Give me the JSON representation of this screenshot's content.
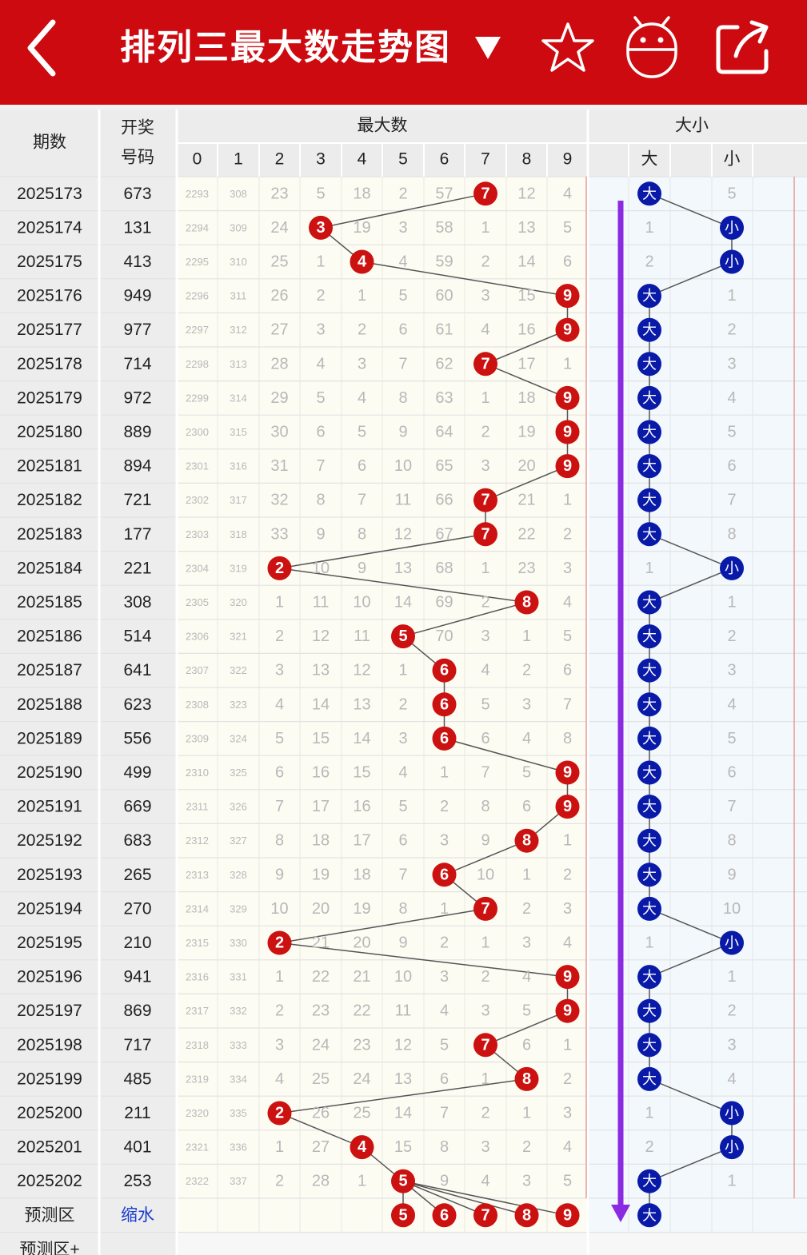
{
  "header": {
    "title": "排列三最大数走势图",
    "icons": [
      "back-arrow-icon",
      "dropdown-triangle-icon",
      "star-icon",
      "android-icon",
      "share-icon"
    ]
  },
  "colors": {
    "brand": "#cc0a10",
    "red_ball": "#cc1111",
    "blue_ball": "#0a1aa8",
    "arrow": "#8a2be2"
  },
  "table": {
    "header_period": "期数",
    "header_draw_line1": "开奖",
    "header_draw_line2": "号码",
    "group_max": "最大数",
    "group_size": "大小",
    "digit_headers": [
      "0",
      "1",
      "2",
      "3",
      "4",
      "5",
      "6",
      "7",
      "8",
      "9"
    ],
    "big_label": "大",
    "small_label": "小",
    "rows": [
      {
        "period": "2025173",
        "draw": "673",
        "cells": [
          "2293",
          "308",
          "23",
          "5",
          "18",
          "2",
          "57",
          "7",
          "12",
          "4"
        ],
        "max": 7,
        "big": "大",
        "small": "5"
      },
      {
        "period": "2025174",
        "draw": "131",
        "cells": [
          "2294",
          "309",
          "24",
          "3",
          "19",
          "3",
          "58",
          "1",
          "13",
          "5"
        ],
        "max": 3,
        "big": "1",
        "small": "小"
      },
      {
        "period": "2025175",
        "draw": "413",
        "cells": [
          "2295",
          "310",
          "25",
          "1",
          "4",
          "4",
          "59",
          "2",
          "14",
          "6"
        ],
        "max": 4,
        "big": "2",
        "small": "小"
      },
      {
        "period": "2025176",
        "draw": "949",
        "cells": [
          "2296",
          "311",
          "26",
          "2",
          "1",
          "5",
          "60",
          "3",
          "15",
          "9"
        ],
        "max": 9,
        "big": "大",
        "small": "1"
      },
      {
        "period": "2025177",
        "draw": "977",
        "cells": [
          "2297",
          "312",
          "27",
          "3",
          "2",
          "6",
          "61",
          "4",
          "16",
          "9"
        ],
        "max": 9,
        "big": "大",
        "small": "2"
      },
      {
        "period": "2025178",
        "draw": "714",
        "cells": [
          "2298",
          "313",
          "28",
          "4",
          "3",
          "7",
          "62",
          "7",
          "17",
          "1"
        ],
        "max": 7,
        "big": "大",
        "small": "3"
      },
      {
        "period": "2025179",
        "draw": "972",
        "cells": [
          "2299",
          "314",
          "29",
          "5",
          "4",
          "8",
          "63",
          "1",
          "18",
          "9"
        ],
        "max": 9,
        "big": "大",
        "small": "4"
      },
      {
        "period": "2025180",
        "draw": "889",
        "cells": [
          "2300",
          "315",
          "30",
          "6",
          "5",
          "9",
          "64",
          "2",
          "19",
          "9"
        ],
        "max": 9,
        "big": "大",
        "small": "5"
      },
      {
        "period": "2025181",
        "draw": "894",
        "cells": [
          "2301",
          "316",
          "31",
          "7",
          "6",
          "10",
          "65",
          "3",
          "20",
          "9"
        ],
        "max": 9,
        "big": "大",
        "small": "6"
      },
      {
        "period": "2025182",
        "draw": "721",
        "cells": [
          "2302",
          "317",
          "32",
          "8",
          "7",
          "11",
          "66",
          "7",
          "21",
          "1"
        ],
        "max": 7,
        "big": "大",
        "small": "7"
      },
      {
        "period": "2025183",
        "draw": "177",
        "cells": [
          "2303",
          "318",
          "33",
          "9",
          "8",
          "12",
          "67",
          "7",
          "22",
          "2"
        ],
        "max": 7,
        "big": "大",
        "small": "8"
      },
      {
        "period": "2025184",
        "draw": "221",
        "cells": [
          "2304",
          "319",
          "2",
          "10",
          "9",
          "13",
          "68",
          "1",
          "23",
          "3"
        ],
        "max": 2,
        "big": "1",
        "small": "小"
      },
      {
        "period": "2025185",
        "draw": "308",
        "cells": [
          "2305",
          "320",
          "1",
          "11",
          "10",
          "14",
          "69",
          "2",
          "8",
          "4"
        ],
        "max": 8,
        "big": "大",
        "small": "1"
      },
      {
        "period": "2025186",
        "draw": "514",
        "cells": [
          "2306",
          "321",
          "2",
          "12",
          "11",
          "5",
          "70",
          "3",
          "1",
          "5"
        ],
        "max": 5,
        "big": "大",
        "small": "2"
      },
      {
        "period": "2025187",
        "draw": "641",
        "cells": [
          "2307",
          "322",
          "3",
          "13",
          "12",
          "1",
          "6",
          "4",
          "2",
          "6"
        ],
        "max": 6,
        "big": "大",
        "small": "3"
      },
      {
        "period": "2025188",
        "draw": "623",
        "cells": [
          "2308",
          "323",
          "4",
          "14",
          "13",
          "2",
          "6",
          "5",
          "3",
          "7"
        ],
        "max": 6,
        "big": "大",
        "small": "4"
      },
      {
        "period": "2025189",
        "draw": "556",
        "cells": [
          "2309",
          "324",
          "5",
          "15",
          "14",
          "3",
          "6",
          "6",
          "4",
          "8"
        ],
        "max": 6,
        "big": "大",
        "small": "5"
      },
      {
        "period": "2025190",
        "draw": "499",
        "cells": [
          "2310",
          "325",
          "6",
          "16",
          "15",
          "4",
          "1",
          "7",
          "5",
          "9"
        ],
        "max": 9,
        "big": "大",
        "small": "6"
      },
      {
        "period": "2025191",
        "draw": "669",
        "cells": [
          "2311",
          "326",
          "7",
          "17",
          "16",
          "5",
          "2",
          "8",
          "6",
          "9"
        ],
        "max": 9,
        "big": "大",
        "small": "7"
      },
      {
        "period": "2025192",
        "draw": "683",
        "cells": [
          "2312",
          "327",
          "8",
          "18",
          "17",
          "6",
          "3",
          "9",
          "8",
          "1"
        ],
        "max": 8,
        "big": "大",
        "small": "8"
      },
      {
        "period": "2025193",
        "draw": "265",
        "cells": [
          "2313",
          "328",
          "9",
          "19",
          "18",
          "7",
          "6",
          "10",
          "1",
          "2"
        ],
        "max": 6,
        "big": "大",
        "small": "9"
      },
      {
        "period": "2025194",
        "draw": "270",
        "cells": [
          "2314",
          "329",
          "10",
          "20",
          "19",
          "8",
          "1",
          "7",
          "2",
          "3"
        ],
        "max": 7,
        "big": "大",
        "small": "10"
      },
      {
        "period": "2025195",
        "draw": "210",
        "cells": [
          "2315",
          "330",
          "2",
          "21",
          "20",
          "9",
          "2",
          "1",
          "3",
          "4"
        ],
        "max": 2,
        "big": "1",
        "small": "小"
      },
      {
        "period": "2025196",
        "draw": "941",
        "cells": [
          "2316",
          "331",
          "1",
          "22",
          "21",
          "10",
          "3",
          "2",
          "4",
          "9"
        ],
        "max": 9,
        "big": "大",
        "small": "1"
      },
      {
        "period": "2025197",
        "draw": "869",
        "cells": [
          "2317",
          "332",
          "2",
          "23",
          "22",
          "11",
          "4",
          "3",
          "5",
          "9"
        ],
        "max": 9,
        "big": "大",
        "small": "2"
      },
      {
        "period": "2025198",
        "draw": "717",
        "cells": [
          "2318",
          "333",
          "3",
          "24",
          "23",
          "12",
          "5",
          "7",
          "6",
          "1"
        ],
        "max": 7,
        "big": "大",
        "small": "3"
      },
      {
        "period": "2025199",
        "draw": "485",
        "cells": [
          "2319",
          "334",
          "4",
          "25",
          "24",
          "13",
          "6",
          "1",
          "8",
          "2"
        ],
        "max": 8,
        "big": "大",
        "small": "4"
      },
      {
        "period": "2025200",
        "draw": "211",
        "cells": [
          "2320",
          "335",
          "2",
          "26",
          "25",
          "14",
          "7",
          "2",
          "1",
          "3"
        ],
        "max": 2,
        "big": "1",
        "small": "小"
      },
      {
        "period": "2025201",
        "draw": "401",
        "cells": [
          "2321",
          "336",
          "1",
          "27",
          "4",
          "15",
          "8",
          "3",
          "2",
          "4"
        ],
        "max": 4,
        "big": "2",
        "small": "小"
      },
      {
        "period": "2025202",
        "draw": "253",
        "cells": [
          "2322",
          "337",
          "2",
          "28",
          "1",
          "5",
          "9",
          "4",
          "3",
          "5"
        ],
        "max": 5,
        "big": "大",
        "small": "1"
      }
    ],
    "predict_label": "预测区",
    "predict_draw": "缩水",
    "predict_balls": [
      "5",
      "6",
      "7",
      "8",
      "9"
    ],
    "predict_big": "大",
    "predict2_label": "预测区+"
  }
}
